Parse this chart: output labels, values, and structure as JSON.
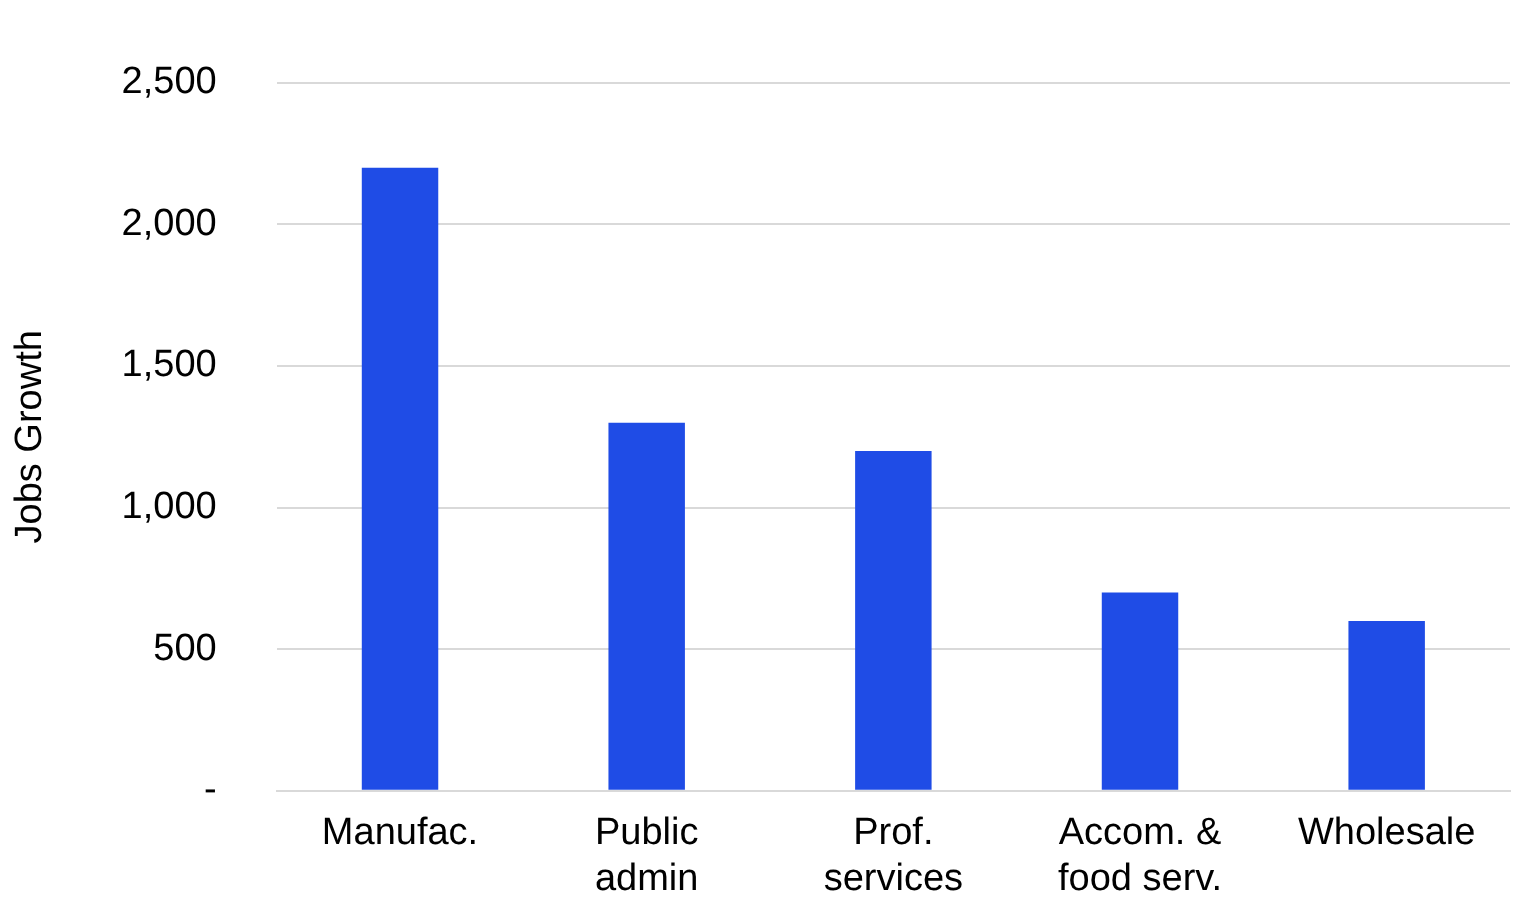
{
  "chart_data": {
    "type": "bar",
    "ylabel": "Jobs Growth",
    "categories": [
      "Manufac.",
      "Public admin",
      "Prof. services",
      "Accom. & food serv.",
      "Wholesale"
    ],
    "values": [
      2200,
      1300,
      1200,
      700,
      600
    ],
    "color": "#1f4ce6",
    "ylim": [
      0,
      2500
    ],
    "yticks": [
      {
        "value": 0,
        "label": "-"
      },
      {
        "value": 500,
        "label": "500"
      },
      {
        "value": 1000,
        "label": "1,000"
      },
      {
        "value": 1500,
        "label": "1,500"
      },
      {
        "value": 2000,
        "label": "2,000"
      },
      {
        "value": 2500,
        "label": "2,500"
      }
    ],
    "grid": "y",
    "legend": false
  }
}
